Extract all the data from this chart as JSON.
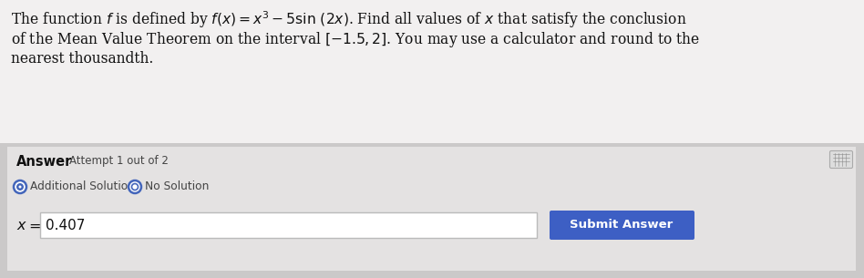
{
  "bg_question": "#f0eeee",
  "bg_answer": "#cccaca",
  "answer_inner_bg": "#e8e6e6",
  "question_line1": "The function $f$ is defined by $f(x) = x^3 - 5\\sin\\,(2x)$. Find all values of $x$ that satisfy the conclusion",
  "question_line2": "of the Mean Value Theorem on the interval $[-1.5, 2]$. You may use a calculator and round to the",
  "question_line3": "nearest thousandth.",
  "answer_label": "Answer",
  "attempt_label": "Attempt 1 out of 2",
  "additional_solution_label": "Additional Solution",
  "no_solution_label": "No Solution",
  "x_label": "x =",
  "x_value": "0.407",
  "submit_button_text": "Submit Answer",
  "submit_button_color": "#3d5fc4",
  "submit_button_text_color": "#ffffff",
  "input_box_bg": "#ffffff",
  "input_border_color": "#bbbbbb",
  "text_color": "#111111",
  "small_text_color": "#444444",
  "radio_outer_color": "#555577",
  "radio_fill_add": "#555577",
  "radio_fill_no": "#ffffff",
  "icon_bg": "#dddddd",
  "icon_border": "#aaaaaa"
}
